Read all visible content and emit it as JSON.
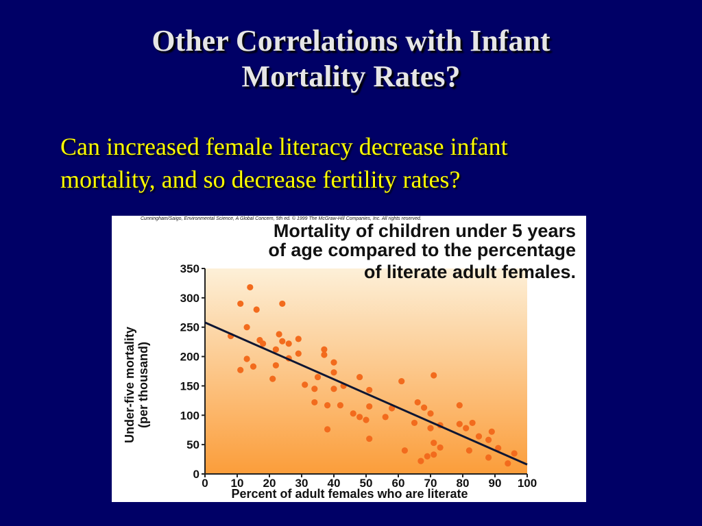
{
  "slide": {
    "title_line1": "Other Correlations with Infant",
    "title_line2": "Mortality Rates?",
    "body_line1": "Can increased female literacy decrease infant",
    "body_line2": "mortality, and so decrease fertility rates?"
  },
  "colors": {
    "background": "#000066",
    "title": "#e6e6e6",
    "body": "#ffff00",
    "points": "#f26b1d",
    "trend": "#0d1633",
    "plot_top": "#fdf0d8",
    "plot_bottom": "#fb9d3a"
  },
  "figure": {
    "credit": "Cunningham/Saigo, Environmental Science, A Global Concern, 5th ed. © 1999 The McGraw-Hill Companies, Inc. All rights reserved.",
    "title_line1": "Mortality of children under 5 years",
    "title_line2": "of age compared to the percentage",
    "title_line3": "of literate adult females."
  },
  "chart_data": {
    "type": "scatter",
    "title": "Mortality of children under 5 years of age compared to the percentage of literate adult females.",
    "xlabel": "Percent of adult females who are literate",
    "ylabel_line1": "Under-five mortality",
    "ylabel_line2": "(per thousand)",
    "xlim": [
      0,
      100
    ],
    "ylim": [
      0,
      350
    ],
    "xticks": [
      "0",
      "10",
      "20",
      "30",
      "40",
      "50",
      "60",
      "70",
      "80",
      "90",
      "100"
    ],
    "yticks": [
      "0",
      "50",
      "100",
      "150",
      "200",
      "250",
      "300",
      "350"
    ],
    "grid": false,
    "trend_line": {
      "x": [
        0,
        100
      ],
      "y": [
        258,
        16
      ]
    },
    "points": [
      [
        8,
        235
      ],
      [
        11,
        290
      ],
      [
        11,
        177
      ],
      [
        13,
        196
      ],
      [
        13,
        250
      ],
      [
        14,
        318
      ],
      [
        15,
        183
      ],
      [
        16,
        280
      ],
      [
        17,
        228
      ],
      [
        18,
        222
      ],
      [
        21,
        162
      ],
      [
        22,
        212
      ],
      [
        22,
        185
      ],
      [
        23,
        238
      ],
      [
        24,
        290
      ],
      [
        24,
        226
      ],
      [
        26,
        222
      ],
      [
        26,
        197
      ],
      [
        29,
        230
      ],
      [
        29,
        205
      ],
      [
        31,
        152
      ],
      [
        34,
        145
      ],
      [
        34,
        122
      ],
      [
        35,
        165
      ],
      [
        37,
        212
      ],
      [
        37,
        203
      ],
      [
        38,
        76
      ],
      [
        38,
        117
      ],
      [
        40,
        190
      ],
      [
        40,
        173
      ],
      [
        40,
        145
      ],
      [
        42,
        117
      ],
      [
        43,
        150
      ],
      [
        46,
        103
      ],
      [
        48,
        165
      ],
      [
        48,
        97
      ],
      [
        50,
        92
      ],
      [
        51,
        143
      ],
      [
        51,
        60
      ],
      [
        51,
        115
      ],
      [
        56,
        97
      ],
      [
        58,
        112
      ],
      [
        61,
        158
      ],
      [
        62,
        40
      ],
      [
        65,
        87
      ],
      [
        66,
        122
      ],
      [
        67,
        22
      ],
      [
        68,
        113
      ],
      [
        69,
        30
      ],
      [
        70,
        103
      ],
      [
        70,
        78
      ],
      [
        71,
        168
      ],
      [
        71,
        53
      ],
      [
        71,
        33
      ],
      [
        73,
        83
      ],
      [
        73,
        45
      ],
      [
        79,
        117
      ],
      [
        79,
        85
      ],
      [
        81,
        78
      ],
      [
        82,
        40
      ],
      [
        83,
        87
      ],
      [
        85,
        64
      ],
      [
        88,
        58
      ],
      [
        88,
        28
      ],
      [
        89,
        72
      ],
      [
        91,
        44
      ],
      [
        94,
        18
      ],
      [
        96,
        35
      ]
    ]
  }
}
